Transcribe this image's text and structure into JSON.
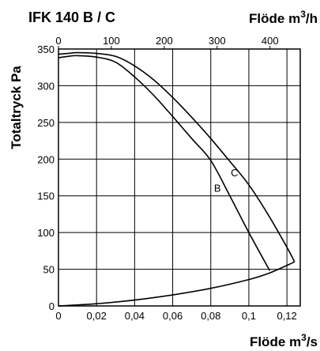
{
  "chart_data": {
    "type": "line",
    "title": "IFK 140 B / C",
    "top_axis_label_prefix": "Flöde m",
    "top_axis_label_sup": "3",
    "top_axis_label_suffix": "/h",
    "bottom_axis_label_prefix": "Flöde m",
    "bottom_axis_label_sup": "3",
    "bottom_axis_label_suffix": "/s",
    "ylabel": "Totaltryck Pa",
    "xlim": [
      0,
      0.127
    ],
    "ylim": [
      0,
      350
    ],
    "top_xlim": [
      0,
      457.2
    ],
    "x_ticks": [
      0,
      0.02,
      0.04,
      0.06,
      0.08,
      0.1,
      0.12
    ],
    "x_tick_labels": [
      "0",
      "0,02",
      "0,04",
      "0,06",
      "0,08",
      "0,1",
      "0,12"
    ],
    "top_ticks": [
      0,
      100,
      200,
      300,
      400
    ],
    "top_tick_labels": [
      "0",
      "100",
      "200",
      "300",
      "400"
    ],
    "y_ticks": [
      0,
      50,
      100,
      150,
      200,
      250,
      300,
      350
    ],
    "y_tick_labels": [
      "0",
      "50",
      "100",
      "150",
      "200",
      "250",
      "300",
      "350"
    ],
    "grid": true,
    "series": [
      {
        "name": "B",
        "label_at": [
          0.081,
          160
        ],
        "x": [
          0,
          0.005,
          0.01,
          0.02,
          0.03,
          0.04,
          0.05,
          0.06,
          0.07,
          0.08,
          0.09,
          0.1,
          0.111
        ],
        "y": [
          338,
          340,
          341,
          339,
          332,
          312,
          287,
          258,
          228,
          198,
          150,
          100,
          48
        ]
      },
      {
        "name": "C",
        "label_at": [
          0.09,
          181
        ],
        "x": [
          0,
          0.005,
          0.01,
          0.02,
          0.03,
          0.04,
          0.05,
          0.06,
          0.07,
          0.08,
          0.09,
          0.1,
          0.11,
          0.12,
          0.124
        ],
        "y": [
          343,
          344,
          345,
          344,
          340,
          327,
          308,
          284,
          257,
          228,
          197,
          165,
          125,
          80,
          60
        ]
      },
      {
        "name": "",
        "x": [
          0,
          0.02,
          0.04,
          0.06,
          0.08,
          0.1,
          0.111,
          0.124
        ],
        "y": [
          0,
          3,
          8,
          15,
          24,
          36,
          45,
          60
        ]
      }
    ]
  }
}
